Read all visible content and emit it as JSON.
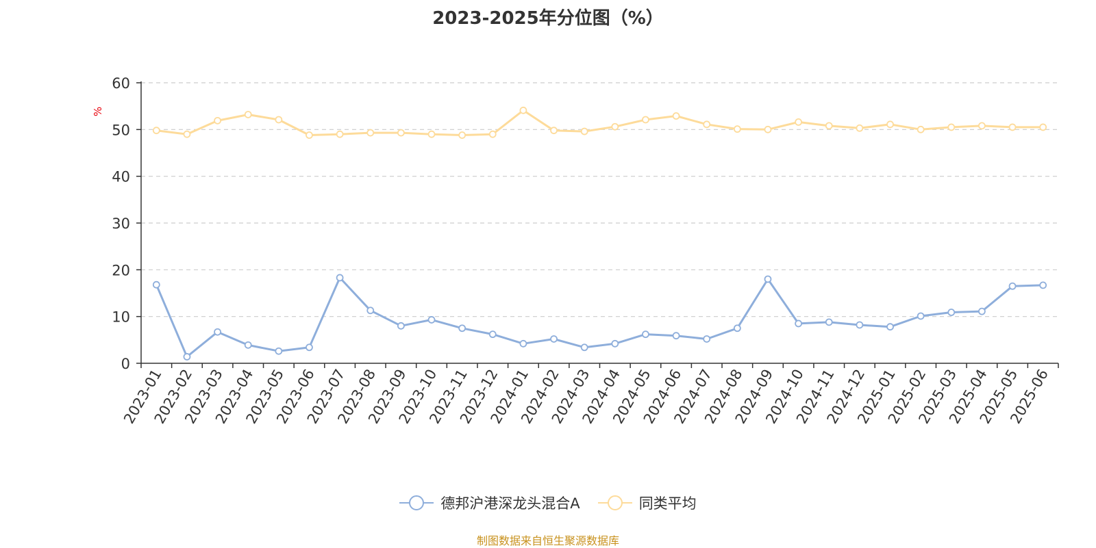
{
  "chart_data": {
    "type": "line",
    "title": "2023-2025年分位图（%）",
    "ylabel": "%",
    "ylim": [
      0,
      60
    ],
    "yticks": [
      0,
      10,
      20,
      30,
      40,
      50,
      60
    ],
    "grid": true,
    "legend_position": "bottom",
    "categories": [
      "2023-01",
      "2023-02",
      "2023-03",
      "2023-04",
      "2023-05",
      "2023-06",
      "2023-07",
      "2023-08",
      "2023-09",
      "2023-10",
      "2023-11",
      "2023-12",
      "2024-01",
      "2024-02",
      "2024-03",
      "2024-04",
      "2024-05",
      "2024-06",
      "2024-07",
      "2024-08",
      "2024-09",
      "2024-10",
      "2024-11",
      "2024-12",
      "2025-01",
      "2025-02",
      "2025-03",
      "2025-04",
      "2025-05",
      "2025-06"
    ],
    "series": [
      {
        "name": "德邦沪港深龙头混合A",
        "color": "#8eaedb",
        "values": [
          16.8,
          1.4,
          6.7,
          3.9,
          2.6,
          3.4,
          18.3,
          11.3,
          8.0,
          9.3,
          7.5,
          6.2,
          4.2,
          5.2,
          3.4,
          4.2,
          6.2,
          5.9,
          5.2,
          7.5,
          18.0,
          8.5,
          8.8,
          8.2,
          7.8,
          10.1,
          10.9,
          11.1,
          16.5,
          16.7
        ]
      },
      {
        "name": "同类平均",
        "color": "#fddb9a",
        "values": [
          49.8,
          49.0,
          51.9,
          53.2,
          52.1,
          48.8,
          49.0,
          49.3,
          49.3,
          49.0,
          48.8,
          49.0,
          54.1,
          49.8,
          49.6,
          50.6,
          52.1,
          52.9,
          51.1,
          50.1,
          50.0,
          51.6,
          50.8,
          50.3,
          51.1,
          50.0,
          50.5,
          50.8,
          50.5,
          50.5
        ]
      }
    ]
  },
  "footer": {
    "source": "制图数据来自恒生聚源数据库"
  },
  "colors": {
    "axis": "#333333",
    "grid": "#cccccc",
    "ylabel": "#e8000b",
    "source": "#c8921e"
  }
}
